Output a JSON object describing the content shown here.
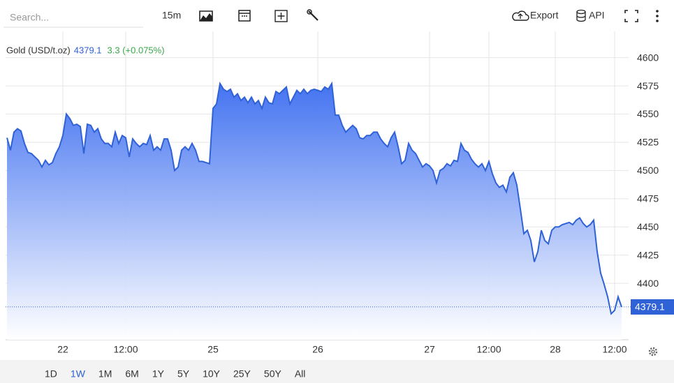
{
  "toolbar": {
    "search_placeholder": "Search...",
    "interval": "15m",
    "export": "Export",
    "api": "API"
  },
  "ranges": [
    "1D",
    "1W",
    "1M",
    "6M",
    "1Y",
    "5Y",
    "10Y",
    "25Y",
    "50Y",
    "All"
  ],
  "selected_range": "1W",
  "chart_data": {
    "type": "area",
    "change": "3.3 (+0.075%)",
    "categories": [
      null,
      null,
      null,
      null,
      null,
      null,
      null,
      null,
      null,
      null,
      null,
      null,
      null,
      null,
      null,
      null,
      "22",
      null,
      null,
      null,
      null,
      null,
      null,
      null,
      null,
      null,
      null,
      null,
      null,
      null,
      null,
      null,
      null,
      null,
      "12:00",
      null,
      null,
      null,
      null,
      null,
      null,
      null,
      null,
      null,
      null,
      null,
      null,
      null,
      null,
      null,
      null,
      null,
      null,
      null,
      null,
      null,
      null,
      null,
      null,
      "25",
      null,
      null,
      null,
      null,
      null,
      null,
      null,
      null,
      null,
      null,
      null,
      null,
      null,
      null,
      null,
      null,
      null,
      null,
      null,
      null,
      null,
      null,
      null,
      null,
      null,
      null,
      null,
      null,
      null,
      "26",
      null,
      null,
      null,
      null,
      null,
      null,
      null,
      null,
      null,
      null,
      null,
      null,
      null,
      null,
      null,
      null,
      null,
      null,
      null,
      null,
      null,
      null,
      null,
      null,
      null,
      null,
      null,
      null,
      null,
      null,
      null,
      "27",
      null,
      null,
      null,
      null,
      null,
      null,
      null,
      null,
      null,
      null,
      null,
      null,
      null,
      null,
      null,
      null,
      "12:00",
      null,
      null,
      null,
      null,
      null,
      null,
      null,
      null,
      null,
      null,
      null,
      null,
      null,
      null,
      null,
      null,
      null,
      null,
      "28",
      null,
      null,
      null,
      null,
      null,
      null,
      null,
      null,
      null,
      null,
      null,
      null,
      null,
      null,
      null,
      null,
      "12:00",
      null,
      null
    ],
    "series": [
      {
        "name": "Gold (USD/t.oz)",
        "color": "#2f62d6",
        "values": [
          4529,
          4518,
          4534,
          4537,
          4535,
          4524,
          4516,
          4515,
          4512,
          4509,
          4503,
          4509,
          4505,
          4507,
          4515,
          4521,
          4531,
          4550,
          4546,
          4540,
          4541,
          4539,
          4515,
          4541,
          4540,
          4534,
          4537,
          4528,
          4524,
          4524,
          4521,
          4534,
          4524,
          4531,
          4529,
          4512,
          4528,
          4524,
          4521,
          4524,
          4523,
          4531,
          4518,
          4521,
          4518,
          4528,
          4528,
          4518,
          4500,
          4503,
          4518,
          4521,
          4518,
          4524,
          4518,
          4508,
          4508,
          4507,
          4506,
          4555,
          4559,
          4577,
          4572,
          4570,
          4572,
          4565,
          4568,
          4562,
          4565,
          4560,
          4565,
          4559,
          4562,
          4555,
          4565,
          4560,
          4559,
          4570,
          4568,
          4571,
          4574,
          4559,
          4565,
          4571,
          4568,
          4572,
          4568,
          4571,
          4572,
          4571,
          4570,
          4574,
          4572,
          4577,
          4549,
          4549,
          4540,
          4534,
          4537,
          4540,
          4537,
          4529,
          4528,
          4531,
          4531,
          4534,
          4534,
          4528,
          4524,
          4521,
          4529,
          4534,
          4521,
          4506,
          4509,
          4524,
          4518,
          4515,
          4509,
          4503,
          4506,
          4504,
          4500,
          4489,
          4500,
          4502,
          4506,
          4504,
          4509,
          4508,
          4524,
          4518,
          4516,
          4510,
          4506,
          4503,
          4506,
          4500,
          4508,
          4497,
          4489,
          4485,
          4487,
          4481,
          4494,
          4498,
          4487,
          4466,
          4444,
          4447,
          4438,
          4419,
          4428,
          4447,
          4438,
          4435,
          4447,
          4450,
          4450,
          4452,
          4453,
          4454,
          4452,
          4456,
          4458,
          4453,
          4450,
          4452,
          4456,
          4428,
          4409,
          4399,
          4388,
          4373,
          4376,
          4388,
          4379.1
        ]
      }
    ],
    "ylim": [
      4350,
      4614
    ],
    "yticks": [
      4400,
      4425,
      4450,
      4475,
      4500,
      4525,
      4550,
      4575,
      4600
    ],
    "grid": true
  }
}
